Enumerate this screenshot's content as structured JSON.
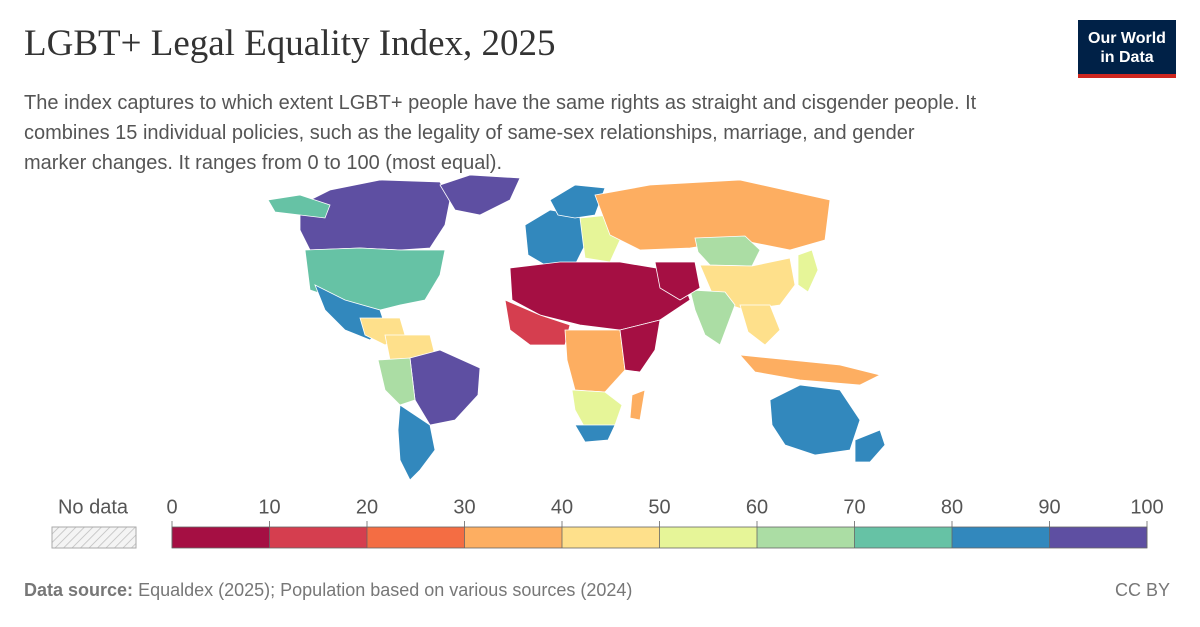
{
  "chart_data": {
    "type": "choropleth",
    "title": "LGBT+ Legal Equality Index, 2025",
    "subtitle": [
      "The index captures to which extent LGBT+ people have the same rights as straight and cisgender people. It",
      "combines 15 individual policies, such as the legality of same-sex relationships, marriage, and gender",
      "marker changes. It ranges from 0 to 100 (most equal)."
    ],
    "no_data_label": "No data",
    "legend_ticks": [
      0,
      10,
      20,
      30,
      40,
      50,
      60,
      70,
      80,
      90,
      100
    ],
    "colors": [
      "#a50f43",
      "#d53e4f",
      "#f46d43",
      "#fdae61",
      "#fee08b",
      "#e6f598",
      "#abdda4",
      "#66c2a5",
      "#3288bd",
      "#5e4fa2"
    ],
    "values": [
      95,
      92,
      72,
      72,
      85,
      45,
      42,
      95,
      65,
      85,
      85,
      85,
      55,
      32,
      5,
      12,
      35,
      8,
      50,
      82,
      35,
      62,
      45,
      60,
      5,
      45,
      30,
      85,
      85,
      55
    ],
    "source_label": "Data source:",
    "source": "Equaldex (2025); Population based on various sources (2024)",
    "license": "CC BY",
    "logo": [
      "Our World",
      "in Data"
    ]
  }
}
